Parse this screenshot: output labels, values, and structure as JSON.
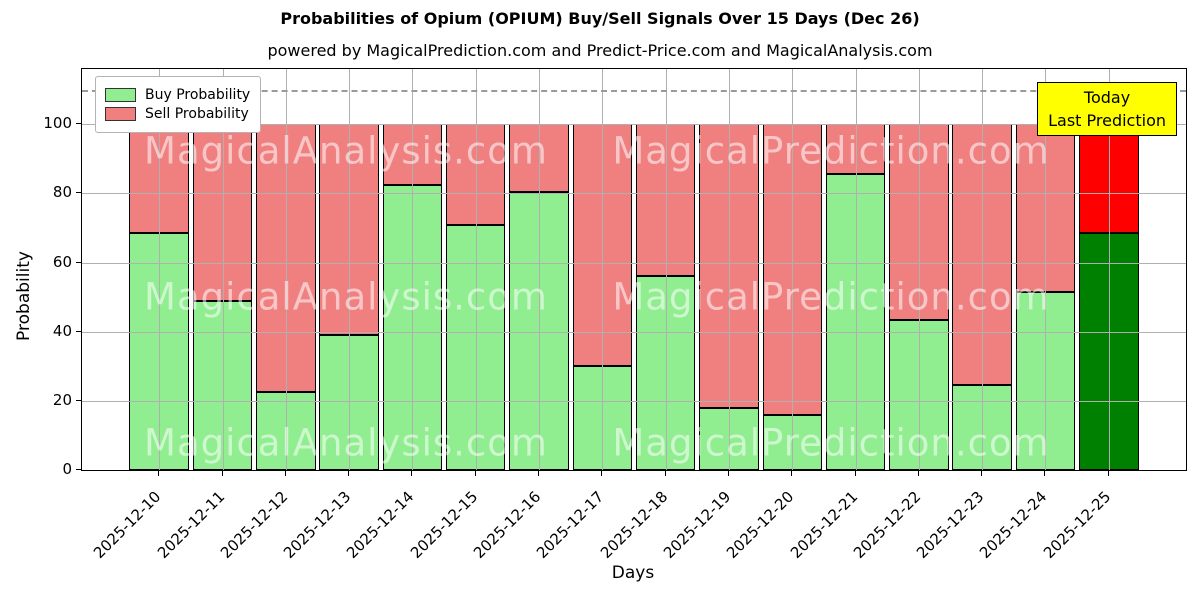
{
  "chart_data": {
    "type": "bar",
    "stacked": true,
    "title": "Probabilities of Opium (OPIUM) Buy/Sell Signals Over 15 Days (Dec 26)",
    "subtitle": "powered by MagicalPrediction.com and Predict-Price.com and MagicalAnalysis.com",
    "xlabel": "Days",
    "ylabel": "Probability",
    "categories": [
      "2025-12-10",
      "2025-12-11",
      "2025-12-12",
      "2025-12-13",
      "2025-12-14",
      "2025-12-15",
      "2025-12-16",
      "2025-12-17",
      "2025-12-18",
      "2025-12-19",
      "2025-12-20",
      "2025-12-21",
      "2025-12-22",
      "2025-12-23",
      "2025-12-24",
      "2025-12-25"
    ],
    "series": [
      {
        "name": "Buy Probability",
        "color": "#90ee90",
        "today_color": "#008000",
        "values": [
          68.5,
          49,
          22.5,
          39,
          82.5,
          71,
          80.5,
          30,
          56,
          18,
          16,
          85.5,
          43.5,
          24.5,
          51.5,
          68.5
        ]
      },
      {
        "name": "Sell Probability",
        "color": "#f08080",
        "today_color": "#ff0000",
        "values": [
          31.5,
          51,
          77.5,
          61,
          17.5,
          29,
          19.5,
          70,
          44,
          82,
          84,
          14.5,
          56.5,
          75.5,
          48.5,
          31.5
        ]
      }
    ],
    "ylim": [
      0,
      116
    ],
    "yticks": [
      0,
      20,
      40,
      60,
      80,
      100
    ],
    "grid": true,
    "dashed_line_y": 110,
    "legend_position": "upper-left",
    "annotation": {
      "line1": "Today",
      "line2": "Last Prediction",
      "bg_color": "#ffff00"
    },
    "watermarks": {
      "left": "MagicalAnalysis.com",
      "right": "MagicalPrediction.com",
      "rows": 3
    },
    "accent_colors": {
      "grid": "#b0b0b0",
      "dashed_line": "#9a9a9a",
      "bar_edge": "#000000"
    }
  }
}
